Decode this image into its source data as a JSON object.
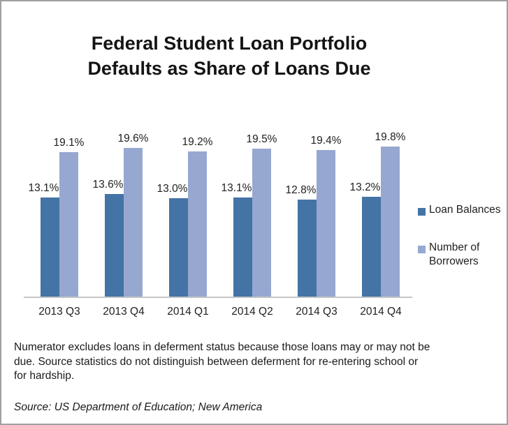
{
  "chart_data": {
    "type": "bar",
    "title": "Federal Student Loan Portfolio\nDefaults as Share of Loans Due",
    "categories": [
      "2013 Q3",
      "2013 Q4",
      "2014 Q1",
      "2014 Q2",
      "2014 Q3",
      "2014 Q4"
    ],
    "series": [
      {
        "name": "Loan Balances",
        "color": "#4473A6",
        "values": [
          13.1,
          13.6,
          13.0,
          13.1,
          12.8,
          13.2
        ]
      },
      {
        "name": "Number of Borrowers",
        "color": "#96A7D0",
        "values": [
          19.1,
          19.6,
          19.2,
          19.5,
          19.4,
          19.8
        ]
      }
    ],
    "value_label_suffix": "%",
    "ylim": [
      0,
      20
    ],
    "grid": false,
    "legend_position": "right",
    "axis_color": "#C6C6C6"
  },
  "note": "Numerator excludes loans in deferment status because those loans may or may not be\ndue. Source statistics do not distinguish between deferment for re-entering school or\nfor hardship.",
  "source": "Source: US Department of Education; New America"
}
